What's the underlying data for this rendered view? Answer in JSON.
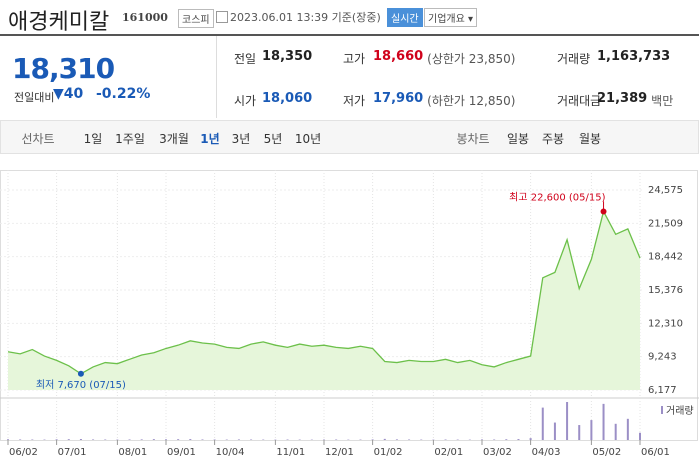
{
  "header": {
    "name": "애경케미칼",
    "code": "161000",
    "market": "코스피",
    "datetime": "2023.06.01 13:39 기준(장중)",
    "realtime": "실시간",
    "company_info": "기업개요"
  },
  "quote": {
    "price": "18,310",
    "change_label": "전일대비",
    "change": "40",
    "change_pct": "-0.22%",
    "stats": [
      {
        "label": "전일",
        "value": "18,350"
      },
      {
        "label": "고가",
        "value": "18,660",
        "note": "(상한가 23,850)"
      },
      {
        "label": "거래량",
        "value": "1,163,733"
      },
      {
        "label": "시가",
        "value": "18,060"
      },
      {
        "label": "저가",
        "value": "17,960",
        "note": "(하한가 12,850)"
      },
      {
        "label": "거래대금",
        "value": "21,389",
        "note": "백만"
      }
    ]
  },
  "tabs": {
    "line_label": "선차트",
    "periods": [
      "1일",
      "1주일",
      "3개월",
      "1년",
      "3년",
      "5년",
      "10년"
    ],
    "selected": 3,
    "candle_label": "봉차트",
    "candles": [
      "일봉",
      "주봉",
      "월봉"
    ]
  },
  "chart_data": {
    "type": "line",
    "x": [
      0,
      1,
      2,
      3,
      4,
      5,
      6,
      7,
      8,
      9,
      10,
      11,
      12,
      13,
      14,
      15,
      16,
      17,
      18,
      19,
      20,
      21,
      22,
      23,
      24,
      25,
      26,
      27,
      28,
      29,
      30,
      31,
      32,
      33,
      34,
      35,
      36,
      37,
      38,
      39,
      40,
      41,
      42,
      43,
      44,
      45,
      46,
      47,
      48,
      49,
      50,
      51,
      52
    ],
    "xlim": [
      0,
      52
    ],
    "xticks": [
      {
        "value": 0,
        "label": "06/02"
      },
      {
        "value": 4,
        "label": "07/01"
      },
      {
        "value": 9,
        "label": "08/01"
      },
      {
        "value": 13,
        "label": "09/01"
      },
      {
        "value": 17,
        "label": "10/04"
      },
      {
        "value": 22,
        "label": "11/01"
      },
      {
        "value": 26,
        "label": "12/01"
      },
      {
        "value": 30,
        "label": "01/02"
      },
      {
        "value": 35,
        "label": "02/01"
      },
      {
        "value": 39,
        "label": "03/02"
      },
      {
        "value": 43,
        "label": "04/03"
      },
      {
        "value": 48,
        "label": "05/02"
      },
      {
        "value": 52,
        "label": "06/01"
      }
    ],
    "ylim": [
      6177,
      24575
    ],
    "yticks": [
      {
        "value": 6177,
        "label": "6,177"
      },
      {
        "value": 9243,
        "label": "9,243"
      },
      {
        "value": 12310,
        "label": "12,310"
      },
      {
        "value": 15376,
        "label": "15,376"
      },
      {
        "value": 18442,
        "label": "18,442"
      },
      {
        "value": 21509,
        "label": "21,509"
      },
      {
        "value": 24575,
        "label": "24,575"
      }
    ],
    "series": [
      {
        "color": "#6cc04a",
        "values": [
          9700,
          9500,
          9900,
          9300,
          8900,
          8400,
          7670,
          8300,
          8700,
          8600,
          9000,
          9400,
          9600,
          10000,
          10300,
          10700,
          10500,
          10400,
          10100,
          10000,
          10400,
          10600,
          10300,
          10100,
          10400,
          10200,
          10300,
          10100,
          10000,
          10200,
          10000,
          8800,
          8700,
          8900,
          8800,
          8800,
          9000,
          8700,
          8900,
          8500,
          8300,
          8700,
          9000,
          9300,
          16500,
          17000,
          20000,
          15500,
          18200,
          22600,
          20500,
          21000,
          18310
        ]
      }
    ],
    "annotations": [
      {
        "text": "최고 22,600 (05/15)",
        "x": 49,
        "value": 22600,
        "color": "#d0021b"
      },
      {
        "text": "최저 7,670 (07/15)",
        "x": 6,
        "value": 7670,
        "color": "#1a5ab6"
      }
    ],
    "volume": {
      "name": "거래량",
      "color": "#9b8fc6",
      "values": [
        120000,
        90000,
        80000,
        70000,
        110000,
        130000,
        160000,
        90000,
        80000,
        70000,
        90000,
        100000,
        140000,
        110000,
        130000,
        150000,
        90000,
        80000,
        70000,
        90000,
        80000,
        70000,
        60000,
        80000,
        70000,
        60000,
        70000,
        80000,
        60000,
        70000,
        90000,
        180000,
        100000,
        80000,
        70000,
        60000,
        80000,
        70000,
        60000,
        90000,
        80000,
        120000,
        150000,
        300000,
        5200000,
        2800000,
        6100000,
        2400000,
        3200000,
        5800000,
        2600000,
        3400000,
        1163733
      ]
    }
  }
}
